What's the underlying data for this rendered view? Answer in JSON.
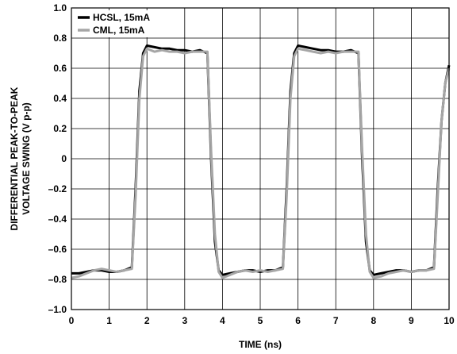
{
  "chart_data": {
    "type": "line",
    "title": "",
    "xlabel": "TIME (ns)",
    "ylabel_lines": [
      "DIFFERENTIAL PEAK-TO-PEAK",
      "VOLTAGE SWING (V p-p)"
    ],
    "xlim": [
      0,
      10
    ],
    "ylim": [
      -1.0,
      1.0
    ],
    "x_ticks": [
      0,
      1,
      2,
      3,
      4,
      5,
      6,
      7,
      8,
      9,
      10
    ],
    "x_tick_labels": [
      "0",
      "1",
      "2",
      "3",
      "4",
      "5",
      "6",
      "7",
      "8",
      "9",
      "10"
    ],
    "y_ticks": [
      1.0,
      0.8,
      0.6,
      0.4,
      0.2,
      0,
      -0.2,
      -0.4,
      -0.6,
      -0.8,
      -1.0
    ],
    "y_tick_labels": [
      "1.0",
      "0.8",
      "0.6",
      "0.4",
      "0.2",
      "0",
      "–0.2",
      "–0.4",
      "–0.6",
      "–0.8",
      "–1.0"
    ],
    "grid": true,
    "legend_position": "top-left",
    "series": [
      {
        "name": "HCSL, 15mA",
        "color": "#000000",
        "x": [
          0,
          0.2,
          0.4,
          0.6,
          0.8,
          1.0,
          1.2,
          1.4,
          1.6,
          1.7,
          1.8,
          1.9,
          2.0,
          2.2,
          2.4,
          2.6,
          2.8,
          3.0,
          3.2,
          3.4,
          3.6,
          3.7,
          3.8,
          3.9,
          4.0,
          4.2,
          4.4,
          4.6,
          4.8,
          5.0,
          5.2,
          5.4,
          5.6,
          5.7,
          5.8,
          5.9,
          6.0,
          6.2,
          6.4,
          6.6,
          6.8,
          7.0,
          7.2,
          7.4,
          7.6,
          7.7,
          7.8,
          7.9,
          8.0,
          8.2,
          8.4,
          8.6,
          8.8,
          9.0,
          9.2,
          9.4,
          9.6,
          9.7,
          9.8,
          9.9,
          10.0
        ],
        "values": [
          -0.76,
          -0.76,
          -0.75,
          -0.74,
          -0.74,
          -0.75,
          -0.75,
          -0.74,
          -0.72,
          -0.2,
          0.45,
          0.7,
          0.75,
          0.74,
          0.73,
          0.73,
          0.72,
          0.72,
          0.71,
          0.72,
          0.7,
          0.0,
          -0.55,
          -0.74,
          -0.77,
          -0.76,
          -0.75,
          -0.74,
          -0.74,
          -0.75,
          -0.74,
          -0.74,
          -0.72,
          -0.2,
          0.45,
          0.7,
          0.75,
          0.74,
          0.73,
          0.72,
          0.72,
          0.71,
          0.71,
          0.72,
          0.7,
          0.0,
          -0.55,
          -0.74,
          -0.77,
          -0.76,
          -0.75,
          -0.74,
          -0.74,
          -0.75,
          -0.74,
          -0.74,
          -0.72,
          -0.2,
          0.25,
          0.5,
          0.62
        ]
      },
      {
        "name": "CML, 15mA",
        "color": "#a6a6a6",
        "x": [
          0,
          0.2,
          0.4,
          0.6,
          0.8,
          1.0,
          1.2,
          1.4,
          1.6,
          1.7,
          1.8,
          1.9,
          2.0,
          2.2,
          2.4,
          2.6,
          2.8,
          3.0,
          3.2,
          3.4,
          3.6,
          3.7,
          3.8,
          3.9,
          4.0,
          4.2,
          4.4,
          4.6,
          4.8,
          5.0,
          5.2,
          5.4,
          5.6,
          5.7,
          5.8,
          5.9,
          6.0,
          6.2,
          6.4,
          6.6,
          6.8,
          7.0,
          7.2,
          7.4,
          7.6,
          7.7,
          7.8,
          7.9,
          8.0,
          8.2,
          8.4,
          8.6,
          8.8,
          9.0,
          9.2,
          9.4,
          9.6,
          9.7,
          9.8,
          9.9,
          10.0
        ],
        "values": [
          -0.79,
          -0.78,
          -0.76,
          -0.74,
          -0.73,
          -0.74,
          -0.75,
          -0.74,
          -0.73,
          -0.25,
          0.4,
          0.68,
          0.73,
          0.71,
          0.72,
          0.71,
          0.71,
          0.7,
          0.71,
          0.71,
          0.71,
          0.05,
          -0.5,
          -0.75,
          -0.79,
          -0.77,
          -0.75,
          -0.74,
          -0.75,
          -0.74,
          -0.75,
          -0.74,
          -0.73,
          -0.25,
          0.4,
          0.68,
          0.73,
          0.72,
          0.71,
          0.7,
          0.71,
          0.7,
          0.71,
          0.71,
          0.71,
          0.05,
          -0.5,
          -0.75,
          -0.79,
          -0.78,
          -0.76,
          -0.75,
          -0.74,
          -0.75,
          -0.74,
          -0.74,
          -0.73,
          -0.25,
          0.25,
          0.5,
          0.6
        ]
      }
    ]
  }
}
